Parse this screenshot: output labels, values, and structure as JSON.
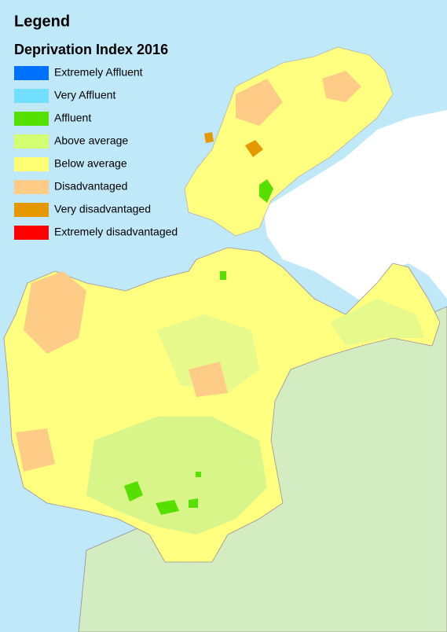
{
  "legend": {
    "title": "Legend",
    "subtitle": "Deprivation Index 2016",
    "items": [
      {
        "label": "Extremely Affluent",
        "color": "#0070ff"
      },
      {
        "label": "Very Affluent",
        "color": "#73dfff"
      },
      {
        "label": "Affluent",
        "color": "#55e000"
      },
      {
        "label": "Above average",
        "color": "#d3ff73"
      },
      {
        "label": "Below average",
        "color": "#ffff73"
      },
      {
        "label": "Disadvantaged",
        "color": "#ffcc88"
      },
      {
        "label": "Very disadvantaged",
        "color": "#e69800"
      },
      {
        "label": "Extremely disadvantaged",
        "color": "#ff0000"
      }
    ]
  }
}
